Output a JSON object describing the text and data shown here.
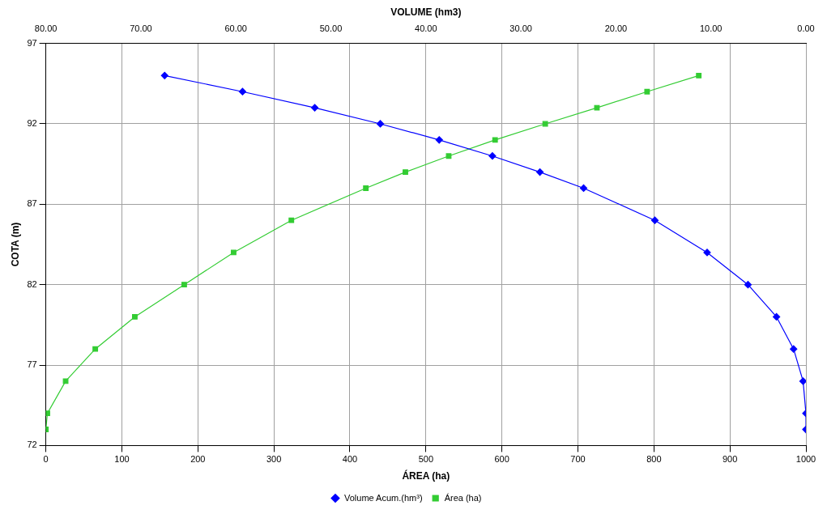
{
  "chart_data": {
    "type": "line",
    "xlabel": "ÁREA (ha)",
    "x2label": "VOLUME (hm3)",
    "ylabel": "COTA (m)",
    "xlim": [
      0,
      1000
    ],
    "xticks": [
      0,
      100,
      200,
      300,
      400,
      500,
      600,
      700,
      800,
      900,
      1000
    ],
    "x2lim": [
      80,
      0
    ],
    "x2ticks": [
      {
        "value": 80,
        "label": "80.00"
      },
      {
        "value": 70,
        "label": "70.00"
      },
      {
        "value": 60,
        "label": "60.00"
      },
      {
        "value": 50,
        "label": "50.00"
      },
      {
        "value": 40,
        "label": "40.00"
      },
      {
        "value": 30,
        "label": "30.00"
      },
      {
        "value": 20,
        "label": "20.00"
      },
      {
        "value": 10,
        "label": "10.00"
      },
      {
        "value": 0,
        "label": "0.00"
      }
    ],
    "ylim": [
      72,
      97
    ],
    "yticks": [
      72,
      77,
      82,
      87,
      92,
      97
    ],
    "grid": true,
    "legend": "bottom",
    "series": [
      {
        "name": "Volume Acum.(hm³)",
        "color": "#0000ff",
        "axis": "x2",
        "marker": "diamond",
        "x": [
          67.5,
          59.3,
          51.7,
          44.8,
          38.6,
          33.0,
          28.0,
          23.4,
          15.9,
          10.4,
          6.1,
          3.1,
          1.3,
          0.3,
          0,
          0
        ],
        "values": [
          95,
          94,
          93,
          92,
          91,
          90,
          89,
          88,
          86,
          84,
          82,
          80,
          78,
          76,
          74,
          73
        ]
      },
      {
        "name": "Área (ha)",
        "color": "#33cc33",
        "marker": "square",
        "x": [
          0,
          2,
          26,
          65,
          117,
          182,
          247,
          323,
          421,
          473,
          530,
          591,
          657,
          725,
          791,
          859
        ],
        "values": [
          73,
          74,
          76,
          78,
          80,
          82,
          84,
          86,
          88,
          89,
          90,
          91,
          92,
          93,
          94,
          95
        ]
      }
    ]
  }
}
